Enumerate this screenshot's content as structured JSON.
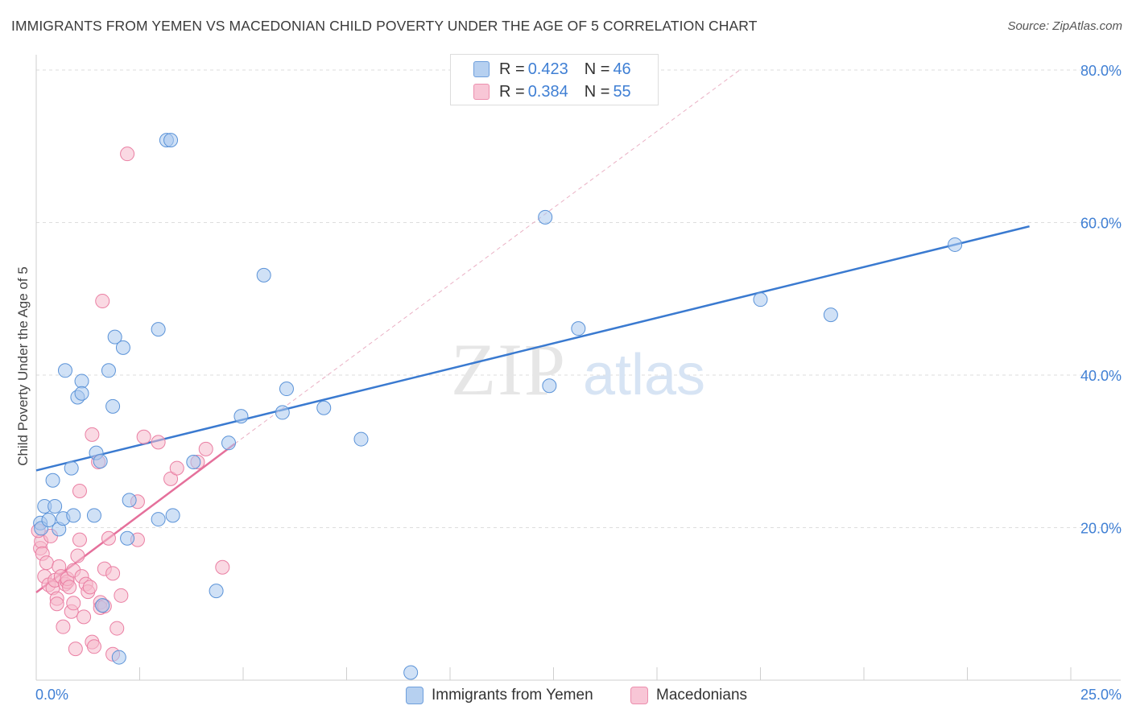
{
  "title": "IMMIGRANTS FROM YEMEN VS MACEDONIAN CHILD POVERTY UNDER THE AGE OF 5 CORRELATION CHART",
  "source": "Source: ZipAtlas.com",
  "watermark": {
    "zip": "ZIP",
    "atlas": "atlas"
  },
  "colors": {
    "blue_fill": "#a9c8ee",
    "blue_stroke": "#5b93d8",
    "blue_line": "#3a7ad0",
    "pink_fill": "#f6b9cc",
    "pink_stroke": "#ea7fa3",
    "pink_line": "#e5709b",
    "grid": "#dddddd",
    "tick_label": "#3f7fd4"
  },
  "legend": {
    "items": [
      {
        "r_label": "R = ",
        "r_value": "0.423",
        "n_label": "N = ",
        "n_value": "46"
      },
      {
        "r_label": "R = ",
        "r_value": "0.384",
        "n_label": "N = ",
        "n_value": "55"
      }
    ]
  },
  "chart_data": {
    "type": "scatter",
    "title": "IMMIGRANTS FROM YEMEN VS MACEDONIAN CHILD POVERTY UNDER THE AGE OF 5 CORRELATION CHART",
    "xlabel": "",
    "ylabel": "Child Poverty Under the Age of 5",
    "xlim": [
      0,
      25
    ],
    "ylim": [
      0,
      82
    ],
    "x_tick_labels": [
      {
        "value": 0,
        "label": "0.0%"
      },
      {
        "value": 25,
        "label": "25.0%"
      }
    ],
    "y_tick_labels": [
      {
        "value": 20,
        "label": "20.0%"
      },
      {
        "value": 40,
        "label": "40.0%"
      },
      {
        "value": 60,
        "label": "60.0%"
      },
      {
        "value": 80,
        "label": "80.0%"
      }
    ],
    "grid": true,
    "legend_position": "top-center",
    "series": [
      {
        "name": "Immigrants from Yemen",
        "color": "blue",
        "trend": {
          "x": [
            0,
            24
          ],
          "y": [
            27.5,
            59.5
          ],
          "dashed_extension": false
        },
        "points": [
          [
            0.1,
            20.6
          ],
          [
            0.12,
            19.9
          ],
          [
            0.2,
            22.8
          ],
          [
            0.3,
            21.0
          ],
          [
            0.4,
            26.2
          ],
          [
            0.45,
            22.8
          ],
          [
            0.55,
            19.8
          ],
          [
            0.65,
            21.2
          ],
          [
            0.7,
            40.6
          ],
          [
            0.85,
            27.8
          ],
          [
            0.9,
            21.6
          ],
          [
            1.0,
            37.1
          ],
          [
            1.1,
            39.2
          ],
          [
            1.1,
            37.6
          ],
          [
            1.4,
            21.6
          ],
          [
            1.45,
            29.8
          ],
          [
            1.55,
            28.7
          ],
          [
            1.75,
            40.6
          ],
          [
            1.85,
            35.9
          ],
          [
            1.9,
            45.0
          ],
          [
            2.1,
            43.6
          ],
          [
            2.2,
            18.6
          ],
          [
            2.25,
            23.6
          ],
          [
            2.95,
            21.1
          ],
          [
            2.95,
            46.0
          ],
          [
            3.15,
            70.8
          ],
          [
            3.25,
            70.8
          ],
          [
            3.3,
            21.6
          ],
          [
            3.8,
            28.6
          ],
          [
            4.65,
            31.1
          ],
          [
            4.95,
            34.6
          ],
          [
            5.5,
            53.1
          ],
          [
            5.95,
            35.1
          ],
          [
            6.05,
            38.2
          ],
          [
            6.95,
            35.7
          ],
          [
            7.85,
            31.6
          ],
          [
            9.05,
            1.0
          ],
          [
            12.3,
            60.7
          ],
          [
            12.4,
            38.6
          ],
          [
            13.1,
            46.1
          ],
          [
            17.5,
            49.9
          ],
          [
            19.2,
            47.9
          ],
          [
            22.2,
            57.1
          ],
          [
            1.6,
            9.8
          ],
          [
            2.0,
            3.0
          ],
          [
            4.35,
            11.7
          ]
        ]
      },
      {
        "name": "Macedonians",
        "color": "pink",
        "trend": {
          "x": [
            0,
            4.8
          ],
          "y": [
            11.5,
            31.0
          ],
          "dashed_extension": true,
          "extension_to": [
            17.0,
            80.0
          ]
        },
        "points": [
          [
            0.1,
            17.3
          ],
          [
            0.12,
            18.2
          ],
          [
            0.15,
            16.6
          ],
          [
            0.2,
            13.6
          ],
          [
            0.25,
            15.4
          ],
          [
            0.3,
            12.5
          ],
          [
            0.35,
            18.9
          ],
          [
            0.4,
            12.1
          ],
          [
            0.45,
            13.1
          ],
          [
            0.5,
            10.7
          ],
          [
            0.5,
            10.0
          ],
          [
            0.55,
            14.9
          ],
          [
            0.6,
            13.6
          ],
          [
            0.65,
            7.0
          ],
          [
            0.7,
            12.6
          ],
          [
            0.75,
            12.9
          ],
          [
            0.75,
            13.3
          ],
          [
            0.8,
            12.2
          ],
          [
            0.85,
            9.0
          ],
          [
            0.9,
            14.4
          ],
          [
            0.9,
            10.1
          ],
          [
            0.95,
            4.1
          ],
          [
            1.0,
            16.3
          ],
          [
            1.05,
            24.8
          ],
          [
            1.05,
            18.4
          ],
          [
            1.1,
            13.6
          ],
          [
            1.15,
            8.3
          ],
          [
            1.2,
            12.6
          ],
          [
            1.25,
            11.6
          ],
          [
            1.3,
            12.2
          ],
          [
            1.35,
            5.0
          ],
          [
            1.4,
            4.4
          ],
          [
            1.35,
            32.2
          ],
          [
            1.5,
            28.6
          ],
          [
            1.55,
            10.2
          ],
          [
            1.55,
            9.5
          ],
          [
            1.6,
            49.7
          ],
          [
            1.65,
            9.7
          ],
          [
            1.65,
            14.6
          ],
          [
            1.75,
            18.6
          ],
          [
            1.85,
            3.4
          ],
          [
            1.85,
            14.0
          ],
          [
            1.95,
            6.8
          ],
          [
            2.05,
            11.1
          ],
          [
            2.2,
            69.0
          ],
          [
            2.45,
            23.4
          ],
          [
            2.45,
            18.4
          ],
          [
            2.6,
            31.9
          ],
          [
            2.95,
            31.2
          ],
          [
            3.25,
            26.4
          ],
          [
            3.4,
            27.8
          ],
          [
            3.9,
            28.6
          ],
          [
            4.1,
            30.3
          ],
          [
            4.5,
            14.8
          ],
          [
            0.05,
            19.6
          ]
        ]
      }
    ]
  },
  "bottom_legend": {
    "series_a": "Immigrants from Yemen",
    "series_b": "Macedonians"
  }
}
